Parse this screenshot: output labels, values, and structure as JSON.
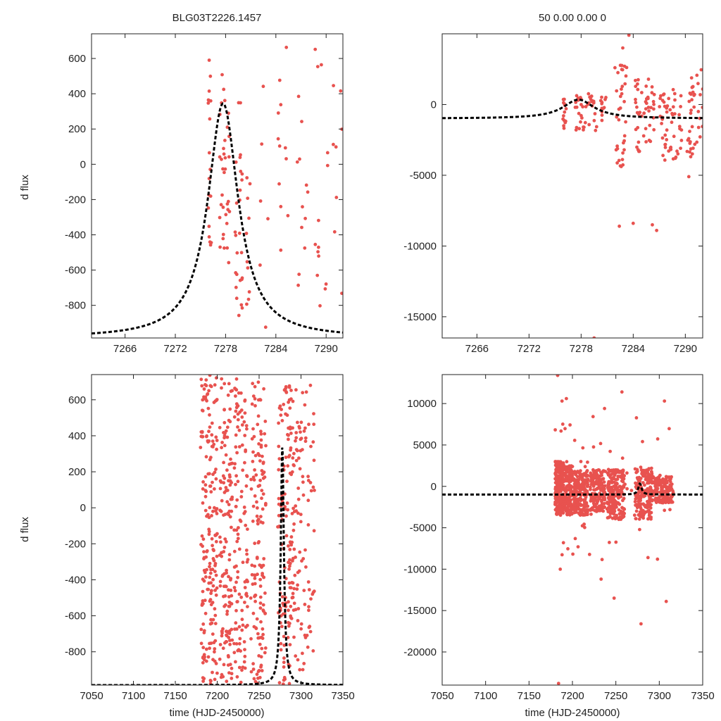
{
  "figure": {
    "title_left": "BLG03T2226.1457",
    "title_right": "50  0.00  0.00  0",
    "ylabel": "d flux",
    "xlabel": "time (HJD-2450000)",
    "point_color": "#e8524f",
    "model_color": "#000000"
  },
  "chart_data": [
    {
      "type": "scatter",
      "panel": "top-left",
      "xlim": [
        7262,
        7292
      ],
      "ylim": [
        -985,
        740
      ],
      "xticks": [
        7266,
        7272,
        7278,
        7284,
        7290
      ],
      "yticks": [
        -800,
        -600,
        -400,
        -200,
        0,
        200,
        400,
        600
      ],
      "model": {
        "t0": 7277.7,
        "peak": 1330,
        "base": -985,
        "width": 2.2
      },
      "clusters": [
        {
          "x": [
            7275.9,
            7276.3
          ],
          "y": [
            -500,
            680
          ],
          "n": 18,
          "seed": 11
        },
        {
          "x": [
            7277.3,
            7278.5
          ],
          "y": [
            -600,
            560
          ],
          "n": 34,
          "seed": 12
        },
        {
          "x": [
            7279.1,
            7280.0
          ],
          "y": [
            -870,
            550
          ],
          "n": 26,
          "seed": 13
        },
        {
          "x": [
            7280.4,
            7281.0
          ],
          "y": [
            -850,
            560
          ],
          "n": 10,
          "seed": 14
        },
        {
          "x": [
            7282.0,
            7283.3
          ],
          "y": [
            -940,
            710
          ],
          "n": 6,
          "seed": 15
        },
        {
          "x": [
            7284.2,
            7285.8
          ],
          "y": [
            -640,
            700
          ],
          "n": 12,
          "seed": 16
        },
        {
          "x": [
            7286.3,
            7288.0
          ],
          "y": [
            -780,
            640
          ],
          "n": 12,
          "seed": 17
        },
        {
          "x": [
            7288.6,
            7292.0
          ],
          "y": [
            -830,
            700
          ],
          "n": 22,
          "seed": 18
        }
      ]
    },
    {
      "type": "scatter",
      "panel": "top-right",
      "xlim": [
        7262,
        7292
      ],
      "ylim": [
        -16500,
        5000
      ],
      "xticks": [
        7266,
        7272,
        7278,
        7284,
        7290
      ],
      "yticks": [
        -15000,
        -10000,
        -5000,
        0
      ],
      "model": {
        "t0": 7277.7,
        "peak": 1330,
        "base": -985,
        "width": 2.2
      },
      "clusters": [
        {
          "x": [
            7275.9,
            7276.3
          ],
          "y": [
            -2000,
            700
          ],
          "n": 14,
          "seed": 21
        },
        {
          "x": [
            7277.3,
            7279.9
          ],
          "y": [
            -2000,
            800
          ],
          "n": 40,
          "seed": 22
        },
        {
          "x": [
            7280.2,
            7281.0
          ],
          "y": [
            -1200,
            700
          ],
          "n": 12,
          "seed": 23
        },
        {
          "x": [
            7282.0,
            7283.4
          ],
          "y": [
            -4500,
            3000
          ],
          "n": 34,
          "seed": 24
        },
        {
          "x": [
            7284.2,
            7286.5
          ],
          "y": [
            -3400,
            1800
          ],
          "n": 48,
          "seed": 25
        },
        {
          "x": [
            7287.0,
            7289.6
          ],
          "y": [
            -4200,
            2200
          ],
          "n": 52,
          "seed": 26
        },
        {
          "x": [
            7290.2,
            7292.0
          ],
          "y": [
            -4000,
            2500
          ],
          "n": 38,
          "seed": 27
        }
      ],
      "outliers": [
        {
          "x": 7282.8,
          "y": 4000
        },
        {
          "x": 7283.5,
          "y": 4900
        },
        {
          "x": 7281.9,
          "y": 2600
        },
        {
          "x": 7282.4,
          "y": -8600
        },
        {
          "x": 7284.0,
          "y": -8400
        },
        {
          "x": 7286.2,
          "y": -8500
        },
        {
          "x": 7286.7,
          "y": -8900
        },
        {
          "x": 7279.5,
          "y": -16500
        },
        {
          "x": 7290.4,
          "y": -5100
        }
      ]
    },
    {
      "type": "scatter",
      "panel": "bottom-left",
      "xlim": [
        7050,
        7350
      ],
      "ylim": [
        -985,
        740
      ],
      "xticks": [
        7050,
        7100,
        7150,
        7200,
        7250,
        7300,
        7350
      ],
      "yticks": [
        -800,
        -600,
        -400,
        -200,
        0,
        200,
        400,
        600
      ],
      "model": {
        "t0": 7277.7,
        "peak": 1330,
        "base": -985,
        "width": 2.2
      },
      "clusters": [
        {
          "x": [
            7180,
            7200
          ],
          "y": [
            -985,
            740
          ],
          "n": 190,
          "seed": 31
        },
        {
          "x": [
            7203,
            7218
          ],
          "y": [
            -985,
            740
          ],
          "n": 140,
          "seed": 32
        },
        {
          "x": [
            7220,
            7237
          ],
          "y": [
            -985,
            720
          ],
          "n": 120,
          "seed": 33
        },
        {
          "x": [
            7240,
            7258
          ],
          "y": [
            -985,
            700
          ],
          "n": 140,
          "seed": 34
        },
        {
          "x": [
            7272,
            7290
          ],
          "y": [
            -985,
            740
          ],
          "n": 130,
          "seed": 35
        },
        {
          "x": [
            7290,
            7316
          ],
          "y": [
            -900,
            700
          ],
          "n": 110,
          "seed": 36
        }
      ]
    },
    {
      "type": "scatter",
      "panel": "bottom-right",
      "xlim": [
        7050,
        7350
      ],
      "ylim": [
        -24000,
        13500
      ],
      "xticks": [
        7050,
        7100,
        7150,
        7200,
        7250,
        7300,
        7350
      ],
      "yticks": [
        -20000,
        -15000,
        -10000,
        -5000,
        0,
        5000,
        10000
      ],
      "model": {
        "t0": 7277.7,
        "peak": 1330,
        "base": -985,
        "width": 2.2
      },
      "clusters": [
        {
          "x": [
            7180,
            7190
          ],
          "y": [
            -3500,
            3000
          ],
          "n": 220,
          "seed": 41
        },
        {
          "x": [
            7190,
            7200
          ],
          "y": [
            -3500,
            2500
          ],
          "n": 160,
          "seed": 42
        },
        {
          "x": [
            7201,
            7218
          ],
          "y": [
            -3500,
            2000
          ],
          "n": 200,
          "seed": 43
        },
        {
          "x": [
            7220,
            7238
          ],
          "y": [
            -3000,
            2000
          ],
          "n": 180,
          "seed": 44
        },
        {
          "x": [
            7240,
            7260
          ],
          "y": [
            -4000,
            2000
          ],
          "n": 200,
          "seed": 45
        },
        {
          "x": [
            7272,
            7292
          ],
          "y": [
            -4000,
            2200
          ],
          "n": 180,
          "seed": 46
        },
        {
          "x": [
            7292,
            7316
          ],
          "y": [
            -2000,
            1200
          ],
          "n": 160,
          "seed": 47
        },
        {
          "x": [
            7180,
            7316
          ],
          "y": [
            -9000,
            9000
          ],
          "n": 70,
          "seed": 48
        }
      ],
      "outliers": [
        {
          "x": 7183,
          "y": 13400
        },
        {
          "x": 7188,
          "y": 10300
        },
        {
          "x": 7193,
          "y": 10600
        },
        {
          "x": 7237,
          "y": 9400
        },
        {
          "x": 7257,
          "y": 11400
        },
        {
          "x": 7306,
          "y": 10300
        },
        {
          "x": 7186,
          "y": -10000
        },
        {
          "x": 7233,
          "y": -11200
        },
        {
          "x": 7248,
          "y": -13500
        },
        {
          "x": 7287,
          "y": -8600
        },
        {
          "x": 7279,
          "y": -16600
        },
        {
          "x": 7308,
          "y": -13900
        },
        {
          "x": 7184,
          "y": -23800
        }
      ]
    }
  ]
}
